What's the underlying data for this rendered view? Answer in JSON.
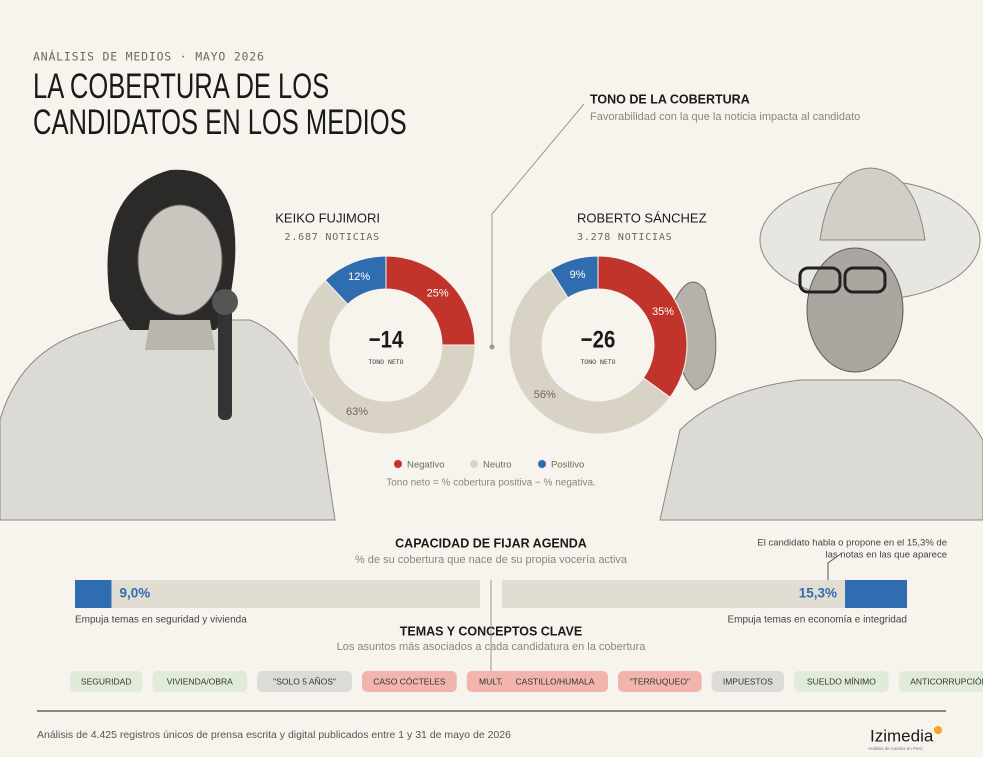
{
  "header": {
    "kicker": "ANÁLISIS DE MEDIOS · MAYO 2026",
    "title_lines": [
      "LA COBERTURA DE LOS",
      "CANDIDATOS EN LOS MEDIOS"
    ]
  },
  "tone": {
    "title": "TONO DE LA COBERTURA",
    "subtitle": "Favorabilidad con la que la noticia impacta al candidato",
    "note": "Tono neto = % cobertura positiva − % negativa."
  },
  "chart_data": [
    {
      "type": "donut",
      "title": "KEIKO FUJIMORI",
      "subtitle": "2.687 NOTICIAS",
      "center_text": "−14",
      "center_label": "TONO NETO",
      "categories": [
        "Negativo",
        "Neutro",
        "Positivo"
      ],
      "values": [
        25,
        63,
        12
      ],
      "value_labels": [
        "25%",
        "63%",
        "12%"
      ],
      "colors": [
        "#c0342b",
        "#d9d3c5",
        "#2f6cb0"
      ]
    },
    {
      "type": "donut",
      "title": "ROBERTO SÁNCHEZ",
      "subtitle": "3.278 NOTICIAS",
      "center_text": "−26",
      "center_label": "TONO NETO",
      "categories": [
        "Negativo",
        "Neutro",
        "Positivo"
      ],
      "values": [
        35,
        56,
        9
      ],
      "value_labels": [
        "35%",
        "56%",
        "9%"
      ],
      "colors": [
        "#c0342b",
        "#d9d3c5",
        "#2f6cb0"
      ]
    },
    {
      "type": "bar",
      "title": "CAPACIDAD DE FIJAR AGENDA",
      "subtitle": "% de su cobertura que nace de su propia vocería activa",
      "values": [
        9.0,
        15.3
      ],
      "value_labels": [
        "9,0%",
        "15,3%"
      ],
      "captions": [
        "Empuja temas en seguridad y vivienda",
        "Empuja temas en economía e integridad"
      ],
      "annotation": [
        "El candidato habla o propone en el 15,3% de",
        "las notas en las que aparece"
      ],
      "xlim": [
        0,
        100
      ],
      "color": "#2f6cb0",
      "track_color": "#e2ddd3"
    }
  ],
  "topics": {
    "title": "TEMAS Y CONCEPTOS CLAVE",
    "subtitle": "Los asuntos más asociados a cada candidatura en la cobertura",
    "groups": [
      [
        {
          "label": "SEGURIDAD",
          "tone": "green"
        },
        {
          "label": "VIVIENDA/OBRA",
          "tone": "green"
        },
        {
          "label": "\"SOLO 5 AÑOS\"",
          "tone": "gray"
        },
        {
          "label": "CASO CÓCTELES",
          "tone": "red"
        },
        {
          "label": "MULTA ONPE",
          "tone": "red"
        }
      ],
      [
        {
          "label": "CASTILLO/HUMALA",
          "tone": "red"
        },
        {
          "label": "\"TERRUQUEO\"",
          "tone": "red"
        },
        {
          "label": "IMPUESTOS",
          "tone": "gray"
        },
        {
          "label": "SUELDO MÍNIMO",
          "tone": "green"
        },
        {
          "label": "ANTICORRUPCIÓN",
          "tone": "green"
        }
      ]
    ],
    "tone_colors": {
      "green": "#e1ebd9",
      "gray": "#dcdbd8",
      "red": "#f1b5ae"
    }
  },
  "footer": {
    "text": "Análisis de 4.425 registros únicos de prensa escrita y digital publicados entre 1 y 31 de mayo de 2026",
    "logo": "Izimedia",
    "logo_tagline": "Análisis de medios en Perú"
  }
}
